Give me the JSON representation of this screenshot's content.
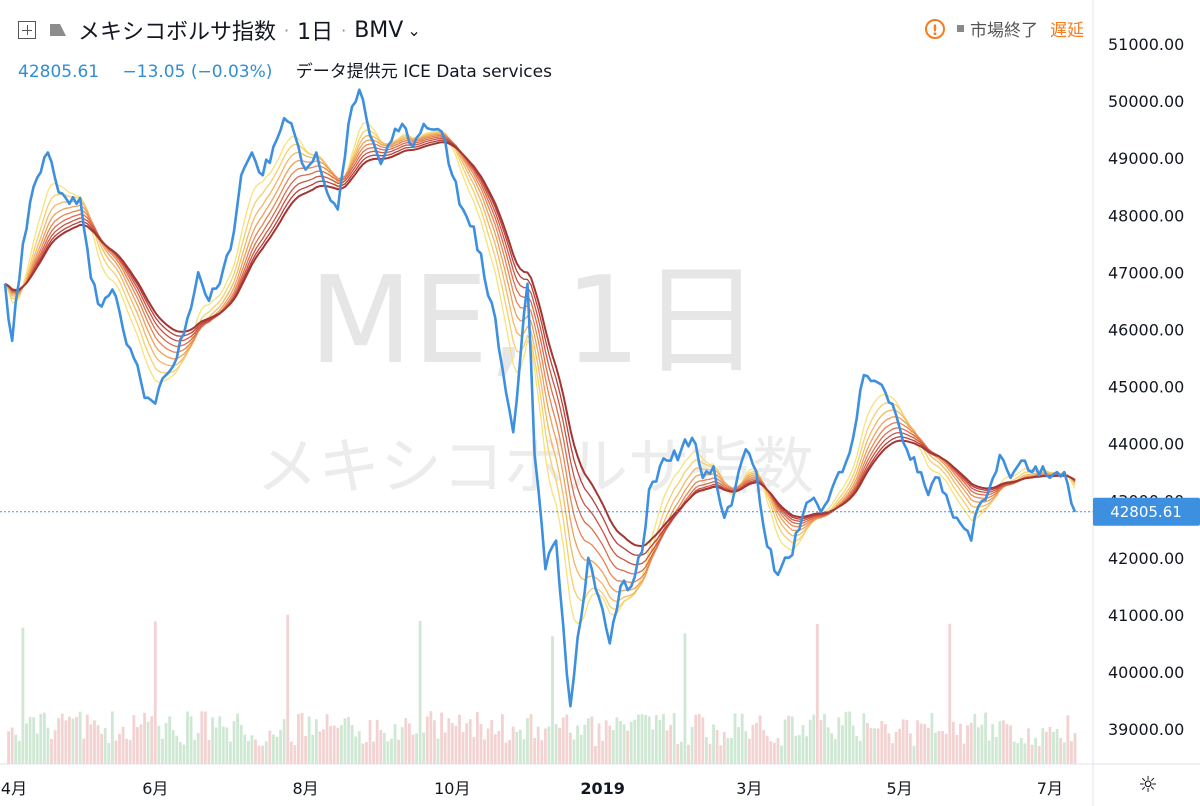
{
  "header": {
    "title": "メキシコボルサ指数",
    "interval": "1日",
    "exchange": "BMV",
    "last_price": "42805.61",
    "change": "−13.05 (−0.03%)",
    "data_source": "データ提供元 ICE Data services",
    "market_status": "市場終了",
    "delay_label": "遅延",
    "warning_icon": "exclamation-circle-icon",
    "settings_icon": "gear-icon"
  },
  "watermark": {
    "line1": "ME, 1日",
    "line2": "メキシコボルサ指数"
  },
  "colors": {
    "price_line": "#3d8fdf",
    "ribbon": [
      "#f7e27a",
      "#f6cf6e",
      "#f3b865",
      "#ee9f5c",
      "#e68553",
      "#dc6c4b",
      "#cd5443",
      "#b9403b",
      "#a33632"
    ],
    "up_volume": "#cfe8d4",
    "down_volume": "#f3d2d2",
    "axis_text": "#131722",
    "price_tag_bg": "#3d8fdf"
  },
  "chart_data": {
    "type": "line",
    "y_axis": {
      "ticks": [
        "51000.00",
        "50000.00",
        "49000.00",
        "48000.00",
        "47000.00",
        "46000.00",
        "45000.00",
        "44000.00",
        "43000.00",
        "42000.00",
        "41000.00",
        "40000.00",
        "39000.00"
      ],
      "range": [
        38500,
        51400
      ],
      "current_value_label": "42805.61"
    },
    "x_axis": {
      "ticks": [
        "4月",
        "6月",
        "8月",
        "10月",
        "2019",
        "3月",
        "5月",
        "7月"
      ],
      "tick_index": [
        0,
        42,
        84,
        125,
        167,
        208,
        250,
        292
      ]
    },
    "price_series": {
      "name": "",
      "anchors": [
        [
          0,
          46800
        ],
        [
          2,
          45800
        ],
        [
          5,
          47500
        ],
        [
          8,
          48500
        ],
        [
          12,
          49100
        ],
        [
          15,
          48400
        ],
        [
          18,
          48200
        ],
        [
          21,
          48300
        ],
        [
          24,
          46900
        ],
        [
          27,
          46400
        ],
        [
          30,
          46700
        ],
        [
          33,
          46000
        ],
        [
          36,
          45500
        ],
        [
          39,
          44800
        ],
        [
          42,
          44700
        ],
        [
          45,
          45200
        ],
        [
          48,
          45500
        ],
        [
          51,
          46200
        ],
        [
          54,
          47000
        ],
        [
          57,
          46500
        ],
        [
          60,
          46800
        ],
        [
          63,
          47400
        ],
        [
          66,
          48700
        ],
        [
          69,
          49100
        ],
        [
          72,
          48700
        ],
        [
          75,
          49200
        ],
        [
          78,
          49700
        ],
        [
          81,
          49400
        ],
        [
          84,
          48800
        ],
        [
          87,
          49100
        ],
        [
          90,
          48400
        ],
        [
          93,
          48100
        ],
        [
          96,
          49600
        ],
        [
          99,
          50200
        ],
        [
          102,
          49400
        ],
        [
          105,
          48900
        ],
        [
          108,
          49300
        ],
        [
          111,
          49600
        ],
        [
          114,
          49200
        ],
        [
          117,
          49600
        ],
        [
          120,
          49500
        ],
        [
          123,
          49300
        ],
        [
          125,
          48700
        ],
        [
          128,
          48100
        ],
        [
          131,
          47800
        ],
        [
          134,
          46900
        ],
        [
          137,
          46200
        ],
        [
          140,
          44900
        ],
        [
          142,
          44200
        ],
        [
          144,
          45500
        ],
        [
          146,
          46800
        ],
        [
          148,
          43800
        ],
        [
          151,
          41800
        ],
        [
          154,
          42300
        ],
        [
          156,
          40800
        ],
        [
          158,
          39400
        ],
        [
          160,
          40600
        ],
        [
          163,
          42000
        ],
        [
          166,
          41300
        ],
        [
          169,
          40500
        ],
        [
          172,
          41500
        ],
        [
          175,
          41500
        ],
        [
          178,
          42100
        ],
        [
          180,
          43200
        ],
        [
          183,
          43600
        ],
        [
          186,
          43700
        ],
        [
          189,
          43900
        ],
        [
          192,
          44100
        ],
        [
          195,
          43400
        ],
        [
          198,
          43600
        ],
        [
          201,
          42700
        ],
        [
          204,
          43200
        ],
        [
          207,
          43900
        ],
        [
          210,
          43500
        ],
        [
          213,
          42200
        ],
        [
          216,
          41700
        ],
        [
          219,
          42000
        ],
        [
          222,
          42500
        ],
        [
          225,
          43000
        ],
        [
          228,
          42800
        ],
        [
          231,
          43200
        ],
        [
          234,
          43500
        ],
        [
          237,
          44100
        ],
        [
          240,
          45200
        ],
        [
          243,
          45100
        ],
        [
          246,
          44900
        ],
        [
          249,
          44500
        ],
        [
          252,
          43900
        ],
        [
          255,
          43500
        ],
        [
          258,
          43100
        ],
        [
          261,
          43400
        ],
        [
          264,
          42900
        ],
        [
          267,
          42600
        ],
        [
          270,
          42300
        ],
        [
          272,
          42900
        ],
        [
          275,
          43200
        ],
        [
          278,
          43800
        ],
        [
          281,
          43400
        ],
        [
          284,
          43700
        ],
        [
          287,
          43500
        ],
        [
          290,
          43600
        ],
        [
          292,
          43400
        ],
        [
          294,
          43500
        ],
        [
          296,
          43500
        ],
        [
          298,
          42950
        ],
        [
          299,
          42805
        ]
      ]
    },
    "ma_ribbon": {
      "count": 9,
      "description_hidden": true
    }
  }
}
